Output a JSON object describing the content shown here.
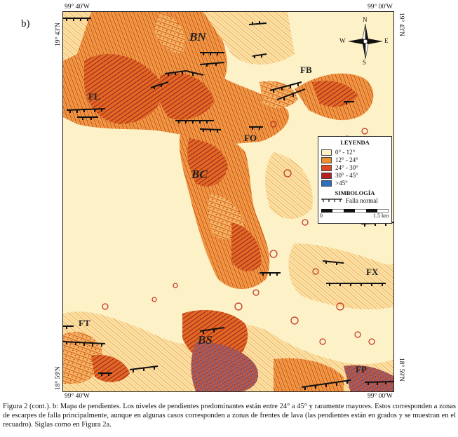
{
  "panel_label": "b)",
  "coords": {
    "top_left": "99° 40'W",
    "top_right": "99° 00'W",
    "bottom_left": "99° 40'W",
    "bottom_right": "99° 00'W",
    "left_top": "19° 43'N",
    "left_bottom": "18° 59'N",
    "right_top": "19° 43'N",
    "right_bottom": "18° 59'N"
  },
  "map_labels": {
    "bn": "BN",
    "fb": "FB",
    "fl": "FL",
    "fo": "FO",
    "bc": "BC",
    "fx": "FX",
    "ft": "FT",
    "bs": "BS",
    "fp": "FP"
  },
  "compass": {
    "n": "N",
    "s": "S",
    "e": "E",
    "w": "W"
  },
  "legend": {
    "title": "LEYENDA",
    "classes": [
      {
        "label": "0° - 12°",
        "color": "#fdf1c7"
      },
      {
        "label": "12° - 24°",
        "color": "#f0902a"
      },
      {
        "label": "24° - 30°",
        "color": "#e0481e"
      },
      {
        "label": "30° - 45°",
        "color": "#b81e22"
      },
      {
        "label": ">45°",
        "color": "#2a6fc0"
      }
    ],
    "symbology_title": "SIMBOLOGÍA",
    "fault_label": "Falla normal",
    "scale_left": "0",
    "scale_right": "1.5 km"
  },
  "caption": "Figura 2 (cont.). b: Mapa de pendientes. Los niveles de pendientes predominantes están entre 24° a 45° y raramente mayores. Estos corresponden a zonas de escarpes de falla principalmente, aunque en algunas casos corresponden a zonas de frentes de lava (las pendientes están en grados y se muestran en el recuadro). Siglas como en Figura 2a."
}
